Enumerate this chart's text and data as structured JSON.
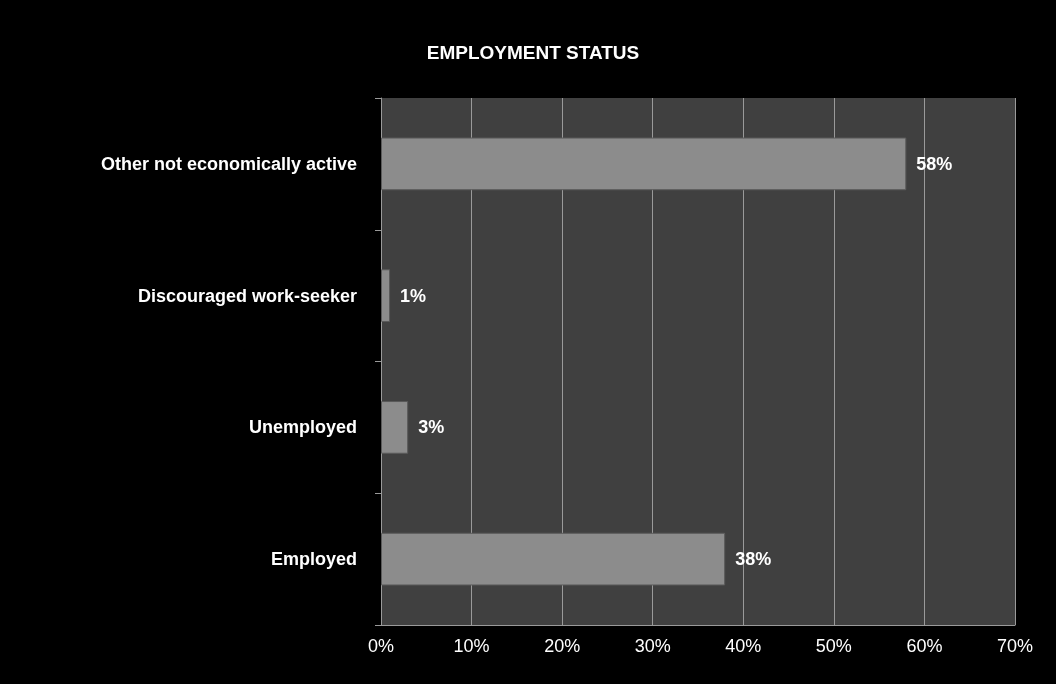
{
  "chart_data": {
    "type": "bar",
    "orientation": "horizontal",
    "title": "EMPLOYMENT STATUS",
    "categories": [
      "Other not economically active",
      "Discouraged work-seeker",
      "Unemployed",
      "Employed"
    ],
    "values": [
      58,
      1,
      3,
      38
    ],
    "value_labels": [
      "58%",
      "1%",
      "3%",
      "38%"
    ],
    "color": "#8c8c8c",
    "xlim": [
      0,
      70
    ],
    "xticks": [
      {
        "value": 0,
        "label": "0%"
      },
      {
        "value": 10,
        "label": "10%"
      },
      {
        "value": 20,
        "label": "20%"
      },
      {
        "value": 30,
        "label": "30%"
      },
      {
        "value": 40,
        "label": "40%"
      },
      {
        "value": 50,
        "label": "50%"
      },
      {
        "value": 60,
        "label": "60%"
      },
      {
        "value": 70,
        "label": "70%"
      }
    ],
    "grid": "x"
  }
}
